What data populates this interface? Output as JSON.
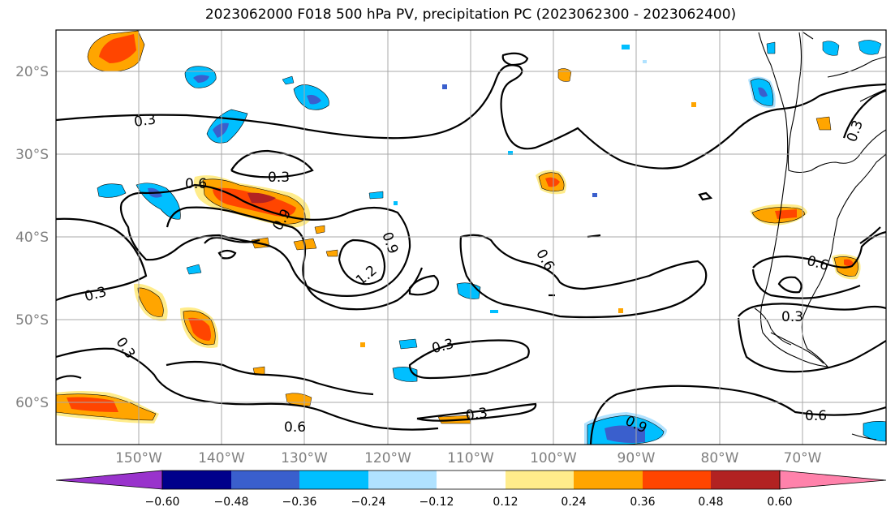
{
  "title": "2023062000 F018 500 hPa PV, precipitation PC (2023062300 - 2023062400)",
  "lon_ticks": [
    "150°W",
    "140°W",
    "130°W",
    "120°W",
    "110°W",
    "100°W",
    "90°W",
    "80°W",
    "70°W"
  ],
  "lat_ticks": [
    "20°S",
    "30°S",
    "40°S",
    "50°S",
    "60°S"
  ],
  "colorbar": {
    "colors": [
      "#9933cc",
      "#00008b",
      "#3a5fcd",
      "#00bfff",
      "#b0e2ff",
      "#ffffff",
      "#ffec8b",
      "#ffa500",
      "#ff4500",
      "#b22222",
      "#ff82ab"
    ],
    "labels": [
      "−0.60",
      "−0.48",
      "−0.36",
      "−0.24",
      "−0.12",
      "0.12",
      "0.24",
      "0.36",
      "0.48",
      "0.60"
    ]
  },
  "contour_labels": [
    "0.3",
    "0.6",
    "0.3",
    "0.9",
    "0.9",
    "1.2",
    "0.3",
    "0.3",
    "0.6",
    "0.3",
    "0.3",
    "0.6",
    "0.9",
    "0.3",
    "0.6",
    "0.6",
    "0.3"
  ]
}
